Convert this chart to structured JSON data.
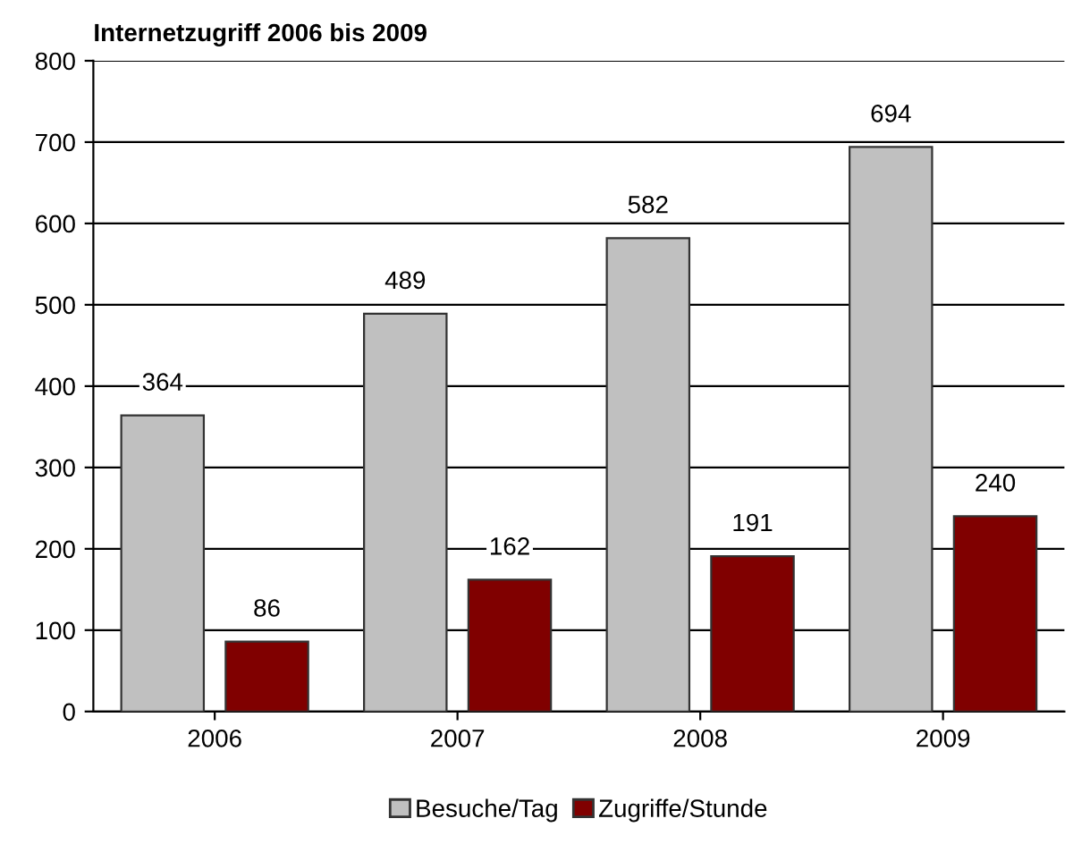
{
  "chart_data": {
    "type": "bar",
    "title": "Internetzugriff 2006 bis 2009",
    "categories": [
      "2006",
      "2007",
      "2008",
      "2009"
    ],
    "series": [
      {
        "name": "Besuche/Tag",
        "color": "#c0c0c0",
        "values": [
          364,
          489,
          582,
          694
        ]
      },
      {
        "name": "Zugriffe/Stunde",
        "color": "#800000",
        "values": [
          86,
          162,
          191,
          240
        ]
      }
    ],
    "ylim": [
      0,
      800
    ],
    "yticks": [
      0,
      100,
      200,
      300,
      400,
      500,
      600,
      700,
      800
    ],
    "grid": "y",
    "legend": "bottom",
    "data_labels": true
  }
}
